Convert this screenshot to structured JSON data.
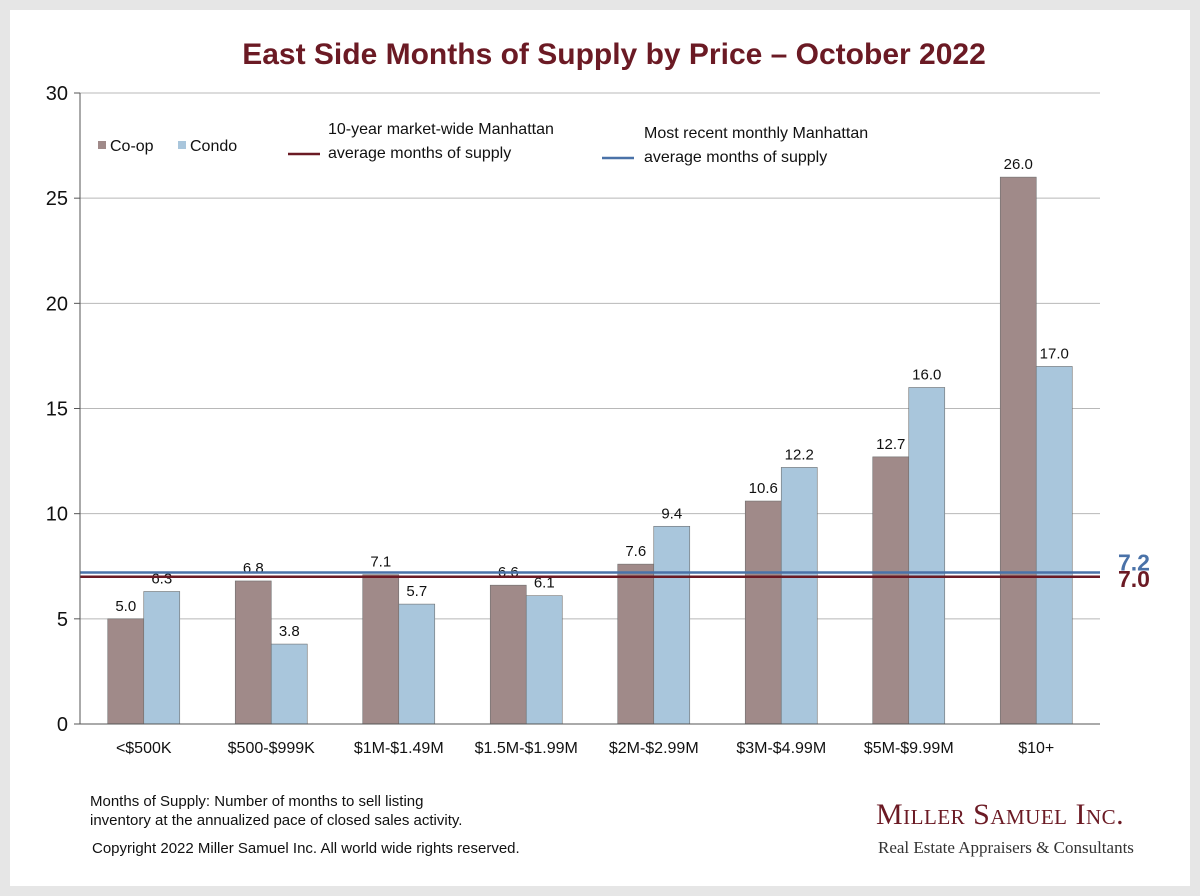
{
  "chart_data": {
    "type": "bar",
    "title": "East Side Months of Supply by Price – October 2022",
    "categories": [
      "<$500K",
      "$500-$999K",
      "$1M-$1.49M",
      "$1.5M-$1.99M",
      "$2M-$2.99M",
      "$3M-$4.99M",
      "$5M-$9.99M",
      "$10+"
    ],
    "series": [
      {
        "name": "Co-op",
        "color": "#a08a89",
        "values": [
          5.0,
          6.8,
          7.1,
          6.6,
          7.6,
          10.6,
          12.7,
          26.0
        ]
      },
      {
        "name": "Condo",
        "color": "#a9c6dc",
        "values": [
          6.3,
          3.8,
          5.7,
          6.1,
          9.4,
          12.2,
          16.0,
          17.0
        ]
      }
    ],
    "reference_lines": [
      {
        "name": "10-year  market-wide Manhattan average months of supply",
        "legend_lines": [
          "10-year  market-wide Manhattan",
          "average months of supply"
        ],
        "value": 7.0,
        "label": "7.0",
        "color": "#6b1a24"
      },
      {
        "name": "Most recent monthly Manhattan average months of supply",
        "legend_lines": [
          "Most recent monthly Manhattan",
          "average months of supply"
        ],
        "value": 7.2,
        "label": "7.2",
        "color": "#4a72a8"
      }
    ],
    "ylim": [
      0,
      30
    ],
    "yticks": [
      0,
      5,
      10,
      15,
      20,
      25,
      30
    ],
    "grid": true,
    "legend_position": "top-left"
  },
  "footer": {
    "definition_line1": "Months of Supply: Number of months to sell listing",
    "definition_line2": "inventory at the annualized pace of closed sales activity.",
    "copyright": "Copyright 2022 Miller Samuel Inc.  All world wide rights reserved."
  },
  "logo": {
    "name": "Miller Samuel Inc.",
    "tagline": "Real Estate Appraisers & Consultants"
  }
}
